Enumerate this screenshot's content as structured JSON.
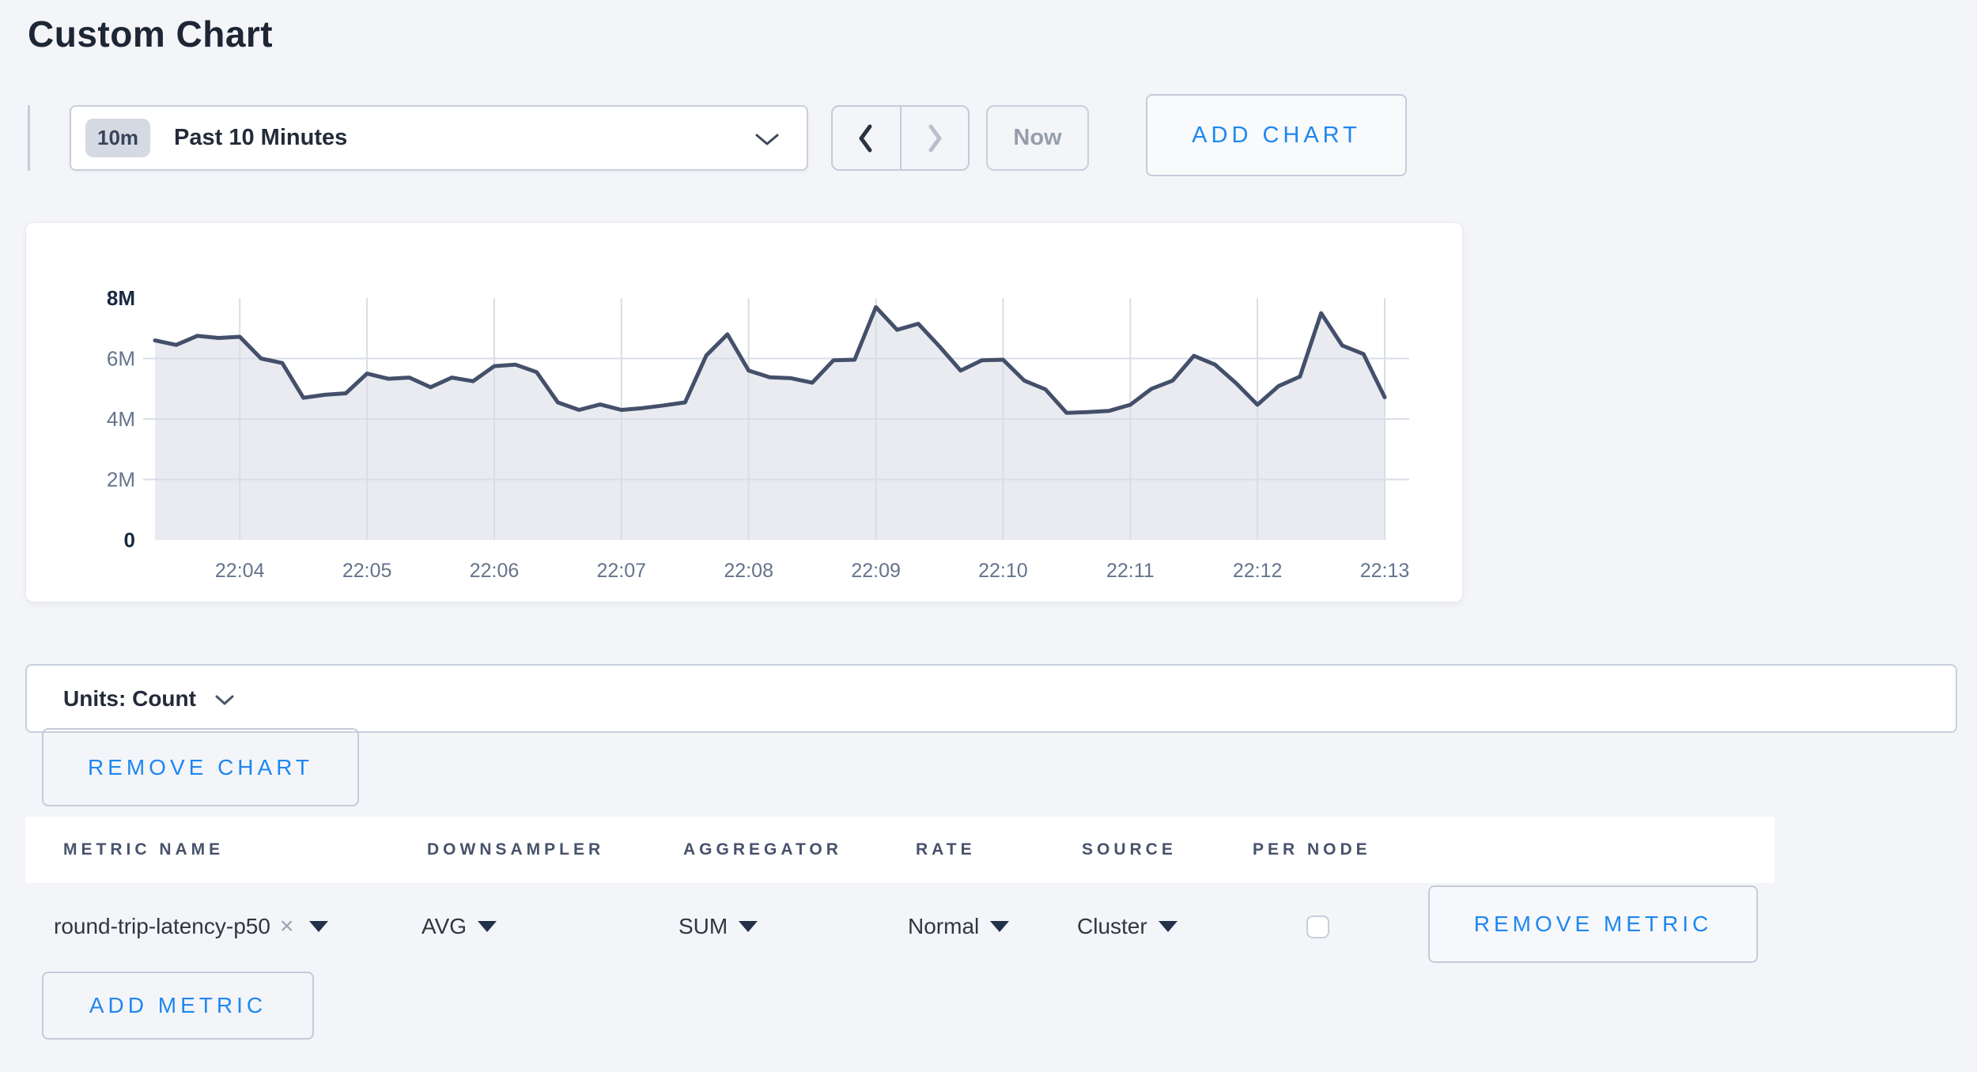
{
  "page": {
    "title": "Custom Chart"
  },
  "toolbar": {
    "time_window": {
      "badge": "10m",
      "label": "Past 10 Minutes"
    },
    "now_button": "Now",
    "add_chart_button": "ADD CHART"
  },
  "chart_data": {
    "type": "area",
    "title": "",
    "xlabel": "",
    "ylabel": "",
    "x_ticks": [
      "22:04",
      "22:05",
      "22:06",
      "22:07",
      "22:08",
      "22:09",
      "22:10",
      "22:11",
      "22:12",
      "22:13"
    ],
    "y_ticks": [
      "0",
      "2M",
      "4M",
      "6M",
      "8M"
    ],
    "ylim_counts": [
      0,
      8000000
    ],
    "grid": true,
    "legend": "none",
    "point_interval_seconds": 10,
    "tick_start_index": 4,
    "tick_step": 6,
    "series": [
      {
        "name": "round-trip-latency-p50",
        "unit": "Count",
        "values_millions": [
          6.6,
          6.45,
          6.75,
          6.68,
          6.72,
          6.0,
          5.85,
          4.7,
          4.8,
          4.85,
          5.5,
          5.33,
          5.37,
          5.05,
          5.37,
          5.25,
          5.75,
          5.8,
          5.55,
          4.55,
          4.3,
          4.48,
          4.3,
          4.36,
          4.45,
          4.55,
          6.1,
          6.8,
          5.6,
          5.38,
          5.35,
          5.2,
          5.94,
          5.96,
          7.7,
          6.95,
          7.15,
          6.4,
          5.6,
          5.94,
          5.96,
          5.27,
          4.98,
          4.2,
          4.23,
          4.27,
          4.47,
          5.0,
          5.27,
          6.09,
          5.8,
          5.18,
          4.47,
          5.09,
          5.4,
          7.5,
          6.43,
          6.15,
          4.72
        ]
      }
    ]
  },
  "units_bar": {
    "label": "Units: Count"
  },
  "remove_chart_button": "REMOVE CHART",
  "metrics_table": {
    "headers": [
      "METRIC NAME",
      "DOWNSAMPLER",
      "AGGREGATOR",
      "RATE",
      "SOURCE",
      "PER NODE"
    ],
    "rows": [
      {
        "metric_name": "round-trip-latency-p50",
        "remove_token": "×",
        "downsampler": "AVG",
        "aggregator": "SUM",
        "rate": "Normal",
        "source": "Cluster",
        "per_node_checked": false,
        "remove_button": "REMOVE METRIC"
      }
    ],
    "add_metric_button": "ADD METRIC"
  },
  "colors": {
    "page_bg": "#f4f5f9",
    "accent_blue": "#1e87f0",
    "chart_line": "#44506a",
    "chart_fill": "#e9ebf1",
    "grid_line": "#d8dde7",
    "axis_label_strong": "#17293f",
    "axis_label_muted": "#64748c"
  }
}
